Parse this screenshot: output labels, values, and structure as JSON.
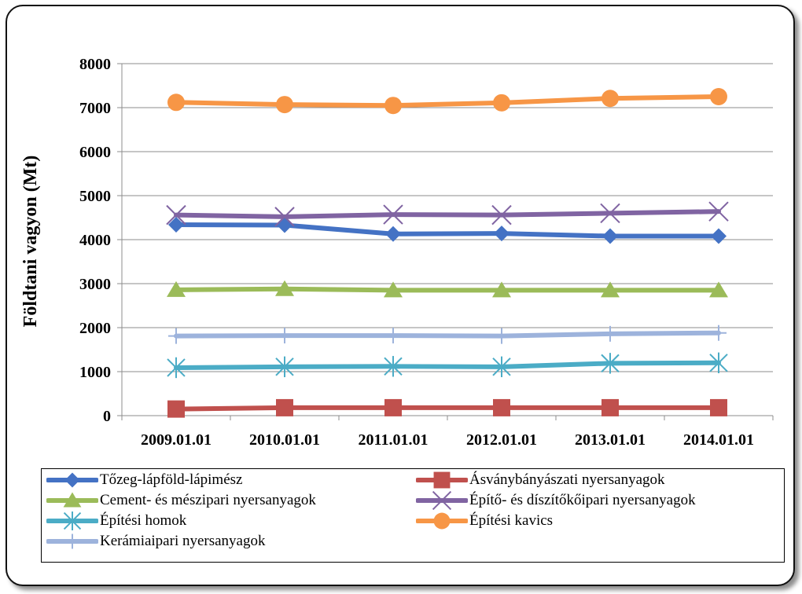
{
  "chart_data": {
    "type": "line",
    "title": "",
    "xlabel": "",
    "ylabel": "Földtani vagyon (Mt)",
    "categories": [
      "2009.01.01",
      "2010.01.01",
      "2011.01.01",
      "2012.01.01",
      "2013.01.01",
      "2014.01.01"
    ],
    "ylim": [
      0,
      8000
    ],
    "yticks": [
      "0",
      "1000",
      "2000",
      "3000",
      "4000",
      "5000",
      "6000",
      "7000",
      "8000"
    ],
    "grid": "horizontal",
    "legend_position": "bottom",
    "series": [
      {
        "name": "Tőzeg-lápföld-lápimész",
        "marker": "diamond",
        "color": "#4472C4",
        "values": [
          4340,
          4330,
          4130,
          4140,
          4080,
          4080
        ]
      },
      {
        "name": "Ásványbányászati nyersanyagok",
        "marker": "square",
        "color": "#C0504D",
        "values": [
          150,
          180,
          180,
          180,
          180,
          180
        ]
      },
      {
        "name": "Cement- és mészipari nyersanyagok",
        "marker": "triangle",
        "color": "#9BBB59",
        "values": [
          2860,
          2880,
          2850,
          2850,
          2850,
          2850
        ]
      },
      {
        "name": "Építő- és díszítőkőipari nyersanyagok",
        "marker": "x",
        "color": "#8064A2",
        "values": [
          4560,
          4520,
          4570,
          4560,
          4600,
          4640
        ]
      },
      {
        "name": "Építési homok",
        "marker": "asterisk",
        "color": "#4BACC6",
        "values": [
          1090,
          1110,
          1120,
          1110,
          1190,
          1200
        ]
      },
      {
        "name": "Építési kavics",
        "marker": "circle",
        "color": "#F79646",
        "values": [
          7120,
          7070,
          7050,
          7110,
          7210,
          7250
        ]
      },
      {
        "name": "Kerámiaipari nyersanyagok",
        "marker": "plus",
        "color": "#9DB3DC",
        "values": [
          1810,
          1820,
          1820,
          1810,
          1860,
          1880
        ]
      }
    ]
  }
}
